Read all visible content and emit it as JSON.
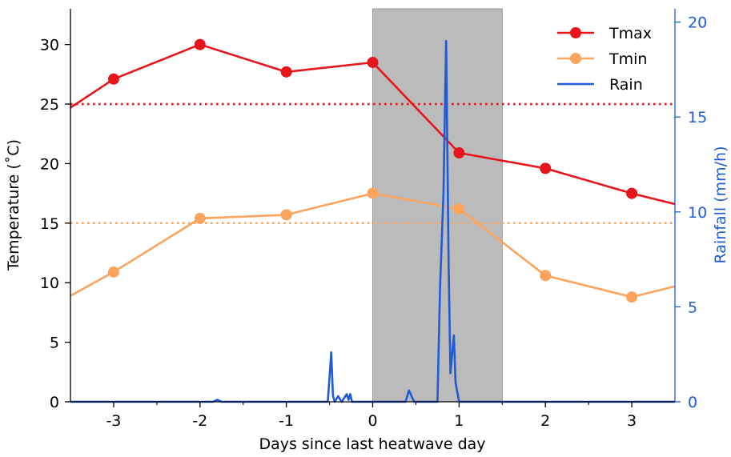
{
  "chart_data": {
    "type": "line",
    "xlabel": "Days since last heatwave day",
    "ylabel": "Temperature ($^\\circ$C)",
    "ylabel_display": "Temperature (˚C)",
    "y2label": "Rainfall (mm/h)",
    "xlim": [
      -3.5,
      3.5
    ],
    "ylim": [
      0,
      33
    ],
    "y2lim": [
      0,
      20.7
    ],
    "xticks": [
      -3,
      -2,
      -1,
      0,
      1,
      2,
      3
    ],
    "xtick_labels": [
      "-3",
      "-2",
      "-1",
      "0",
      "1",
      "2",
      "3"
    ],
    "yticks": [
      0,
      5,
      10,
      15,
      20,
      25,
      30
    ],
    "ytick_labels": [
      "0",
      "5",
      "10",
      "15",
      "20",
      "25",
      "30"
    ],
    "y2ticks": [
      0,
      5,
      10,
      15,
      20
    ],
    "y2tick_labels": [
      "0",
      "5",
      "10",
      "15",
      "20"
    ],
    "shaded_region": {
      "x0": 0,
      "x1": 1.5,
      "color": "#bbbbbb"
    },
    "reference_lines": [
      {
        "y": 25,
        "color": "#e8141c",
        "style": "dotted"
      },
      {
        "y": 15,
        "color": "#fda45c",
        "style": "dotted"
      }
    ],
    "legend": {
      "position": "top-right"
    },
    "series": [
      {
        "name": "Tmax",
        "color": "#e8141c",
        "marker": "circle",
        "axis": "left",
        "x": [
          -3.5,
          -3,
          -2,
          -1,
          0,
          1,
          2,
          3,
          3.5
        ],
        "y": [
          24.7,
          27.1,
          30.0,
          27.7,
          28.5,
          20.9,
          19.6,
          17.5,
          16.6
        ],
        "marker_x": [
          -3,
          -2,
          -1,
          0,
          1,
          2,
          3
        ]
      },
      {
        "name": "Tmin",
        "color": "#fda45c",
        "marker": "circle",
        "axis": "left",
        "x": [
          -3.5,
          -3,
          -2,
          -1,
          0,
          1,
          2,
          3,
          3.5
        ],
        "y": [
          8.9,
          10.9,
          15.4,
          15.7,
          17.5,
          16.2,
          10.6,
          8.8,
          9.7
        ],
        "marker_x": [
          -3,
          -2,
          -1,
          0,
          1,
          2,
          3
        ]
      },
      {
        "name": "Rain",
        "color": "#1f5bd6",
        "marker": "none",
        "axis": "right",
        "x": [
          -3.5,
          -1.85,
          -1.8,
          -1.75,
          -0.52,
          -0.48,
          -0.46,
          -0.44,
          -0.4,
          -0.36,
          -0.33,
          -0.3,
          -0.28,
          -0.26,
          -0.24,
          -0.2,
          0.38,
          0.42,
          0.48,
          0.75,
          0.78,
          0.82,
          0.85,
          0.88,
          0.9,
          0.92,
          0.94,
          0.96,
          0.98,
          1.0,
          1.02,
          3.5
        ],
        "y": [
          0,
          0,
          0.1,
          0,
          0,
          2.6,
          0.3,
          0,
          0.3,
          0,
          0.2,
          0.4,
          0.1,
          0.4,
          0,
          0,
          0,
          0.6,
          0,
          0,
          6.0,
          11.0,
          19.0,
          7.0,
          1.5,
          2.5,
          3.5,
          1.0,
          0.5,
          0,
          0,
          0
        ]
      }
    ]
  }
}
